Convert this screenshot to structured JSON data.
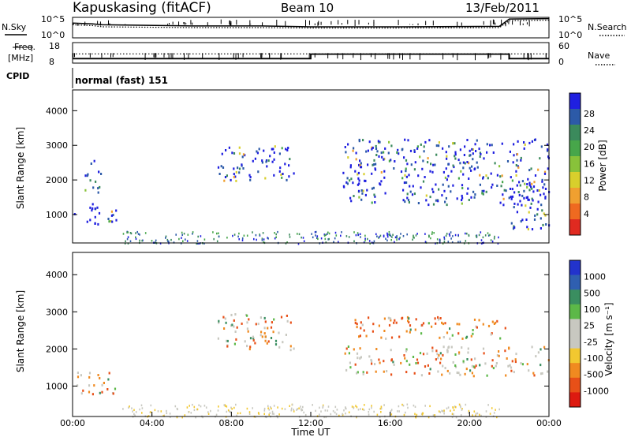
{
  "header": {
    "station": "Kapuskasing (fitACF)",
    "beam": "Beam 10",
    "date": "13/Feb/2011"
  },
  "labels": {
    "nsky": "N.Sky",
    "nsearch": "N.Search",
    "freq_line1": "Freq.",
    "freq_line2": "[MHz]",
    "nave": "Nave",
    "cpid": "CPID",
    "cpid_value": "normal (fast) 151"
  },
  "chart_data": [
    {
      "type": "line",
      "panel": "noise",
      "series": [
        {
          "name": "N.Sky",
          "style": "solid"
        },
        {
          "name": "N.Search",
          "style": "dotted"
        }
      ],
      "x": [
        "00:00",
        "01:00",
        "01:30",
        "06:00",
        "09:30",
        "12:00",
        "16:00",
        "21:30",
        "22:00",
        "24:00"
      ],
      "sky_log10": [
        3.6,
        3.4,
        3.2,
        2.9,
        2.9,
        2.7,
        2.7,
        2.8,
        4.6,
        4.7
      ],
      "search_log10": [
        3.2,
        3.0,
        2.7,
        2.5,
        2.5,
        2.4,
        2.4,
        2.5,
        4.2,
        4.3
      ],
      "left_ticks": [
        "10^5",
        "10^0"
      ],
      "right_ticks": [
        "10^5",
        "10^0"
      ]
    },
    {
      "type": "line",
      "panel": "freq-nave",
      "series": [
        {
          "name": "Freq.",
          "style": "solid"
        },
        {
          "name": "Nave",
          "style": "dotted"
        }
      ],
      "x": [
        "00:00",
        "12:00",
        "12:00",
        "22:00",
        "22:00",
        "24:00"
      ],
      "freq_mhz": [
        10.2,
        10.2,
        12.4,
        12.4,
        10.2,
        10.2
      ],
      "nave_values": [
        27,
        27,
        27,
        27,
        27,
        27
      ],
      "left_ticks": [
        "18",
        "8"
      ],
      "right_ticks": [
        "60",
        "0"
      ],
      "ylim_left": [
        8,
        18
      ],
      "ylim_right": [
        0,
        60
      ]
    },
    {
      "type": "heatmap",
      "panel": "power",
      "xlabel": "",
      "ylabel": "Slant Range [km]",
      "ylim": [
        180,
        4600
      ],
      "yticks": [
        "1000",
        "2000",
        "3000",
        "4000"
      ],
      "colorbar_label": "Power [dB]",
      "colorbar_ticks": [
        "4",
        "8",
        "12",
        "16",
        "20",
        "24",
        "28"
      ],
      "colorbar_colors": [
        "#1f1fe0",
        "#2c5aa8",
        "#3b8a5c",
        "#47a64a",
        "#88c23a",
        "#d8cf2c",
        "#f0a030",
        "#ef6a20",
        "#e02a20"
      ],
      "regions": [
        {
          "t": [
            0.0,
            2.2
          ],
          "range": [
            750,
            1350
          ],
          "level": 0.6
        },
        {
          "t": [
            0.6,
            1.4
          ],
          "range": [
            1600,
            2600
          ],
          "level": 0.45
        },
        {
          "t": [
            7.3,
            11.2
          ],
          "range": [
            2000,
            3000
          ],
          "level": 0.3
        },
        {
          "t": [
            13.6,
            24.0
          ],
          "range": [
            1300,
            3200
          ],
          "level": 0.45
        },
        {
          "t": [
            22.0,
            24.0
          ],
          "range": [
            600,
            2000
          ],
          "level": 0.3
        }
      ]
    },
    {
      "type": "heatmap",
      "panel": "velocity",
      "xlabel": "Time UT",
      "ylabel": "Slant Range [km]",
      "ylim": [
        180,
        4600
      ],
      "yticks": [
        "1000",
        "2000",
        "3000",
        "4000"
      ],
      "xticks": [
        "00:00",
        "04:00",
        "08:00",
        "12:00",
        "16:00",
        "20:00",
        "00:00"
      ],
      "colorbar_label": "Velocity [m s⁻¹]",
      "colorbar_ticks": [
        "1000",
        "500",
        "100",
        "25",
        "-25",
        "-100",
        "-500",
        "-1000"
      ],
      "colorbar_colors": [
        "#2233cc",
        "#2f5fb0",
        "#3a8e60",
        "#5cb848",
        "#c8c8c0",
        "#c8c8c0",
        "#f2c830",
        "#f08a20",
        "#e85018",
        "#dd1a10"
      ],
      "regions": [
        {
          "t": [
            0.0,
            2.2
          ],
          "range": [
            800,
            1400
          ],
          "level": 0.5
        },
        {
          "t": [
            7.3,
            11.2
          ],
          "range": [
            2000,
            3000
          ],
          "level": 0.45
        },
        {
          "t": [
            14.2,
            21.8
          ],
          "range": [
            2300,
            2900
          ],
          "level": 0.7
        },
        {
          "t": [
            13.6,
            24.0
          ],
          "range": [
            1300,
            2100
          ],
          "level": 0.45
        }
      ]
    }
  ]
}
